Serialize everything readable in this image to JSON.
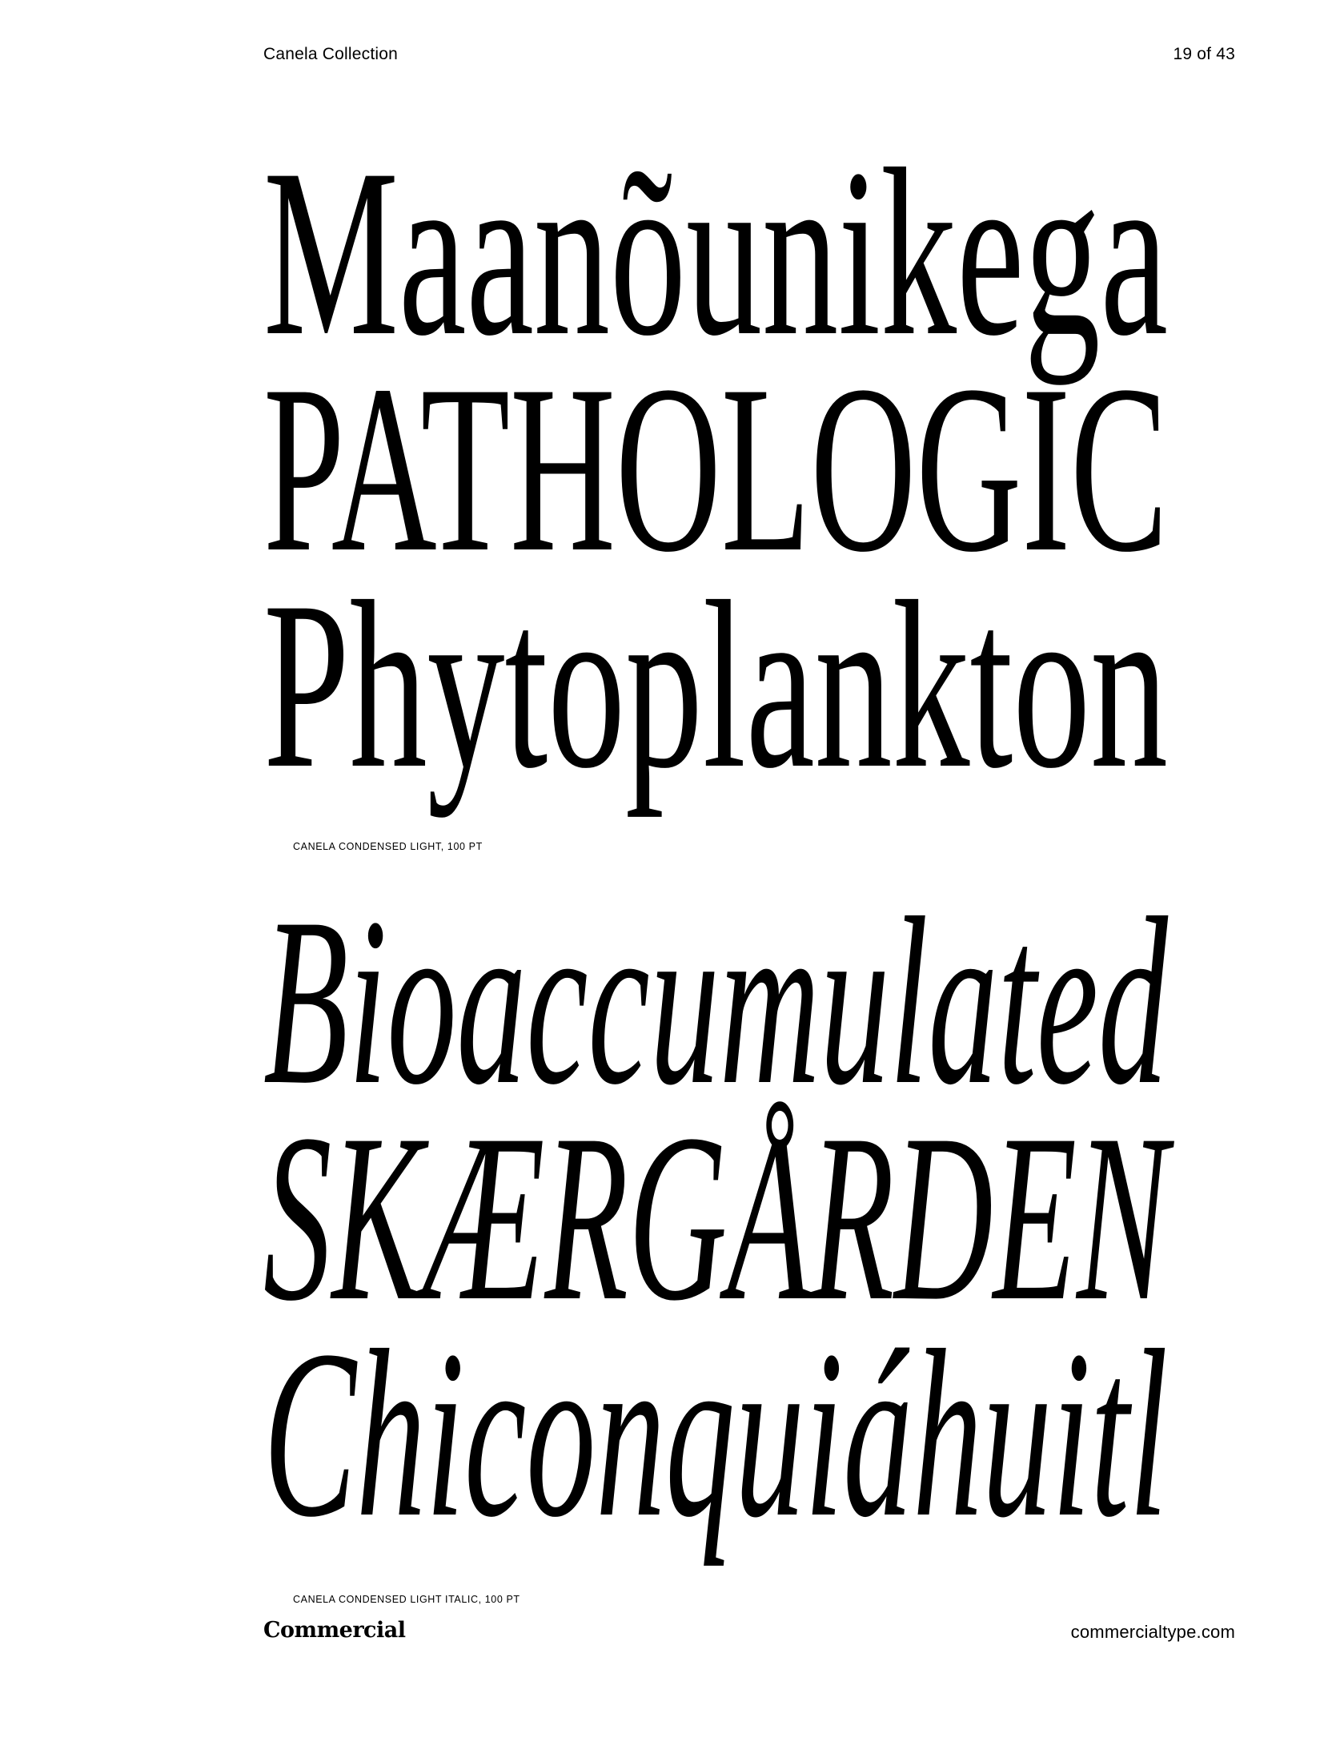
{
  "header": {
    "collection_title": "Canela Collection",
    "page_number": "19 of 43"
  },
  "specimens": [
    {
      "lines": [
        "Maanõunikega",
        "PATHOLOGIC",
        "Phytoplankton"
      ],
      "caption": "CANELA CONDENSED LIGHT, 100 PT"
    },
    {
      "lines": [
        "Bioaccumulated",
        "SKÆRGÅRDEN",
        "Chiconquiáhuitl"
      ],
      "caption": "CANELA CONDENSED LIGHT ITALIC, 100 PT"
    }
  ],
  "footer": {
    "logo_text": "Commercial",
    "website": "commercialtype.com"
  }
}
